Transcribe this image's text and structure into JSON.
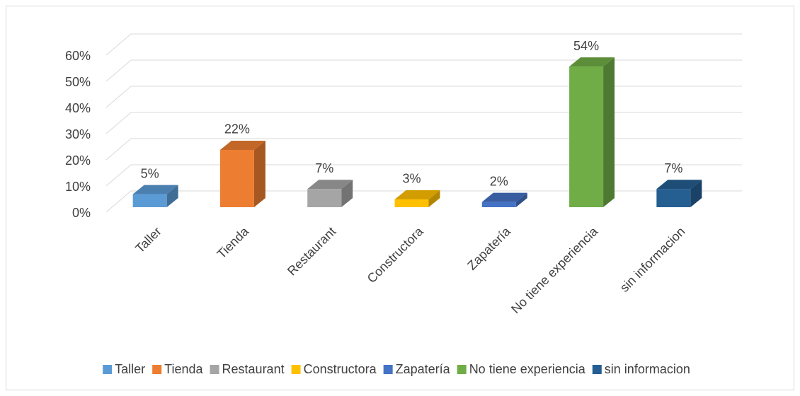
{
  "chart_data": {
    "type": "bar3d",
    "categories": [
      "Taller",
      "Tienda",
      "Restaurant",
      "Constructora",
      "Zapatería",
      "No tiene experiencia",
      "sin informacion"
    ],
    "values": [
      5,
      22,
      7,
      3,
      2,
      54,
      7
    ],
    "value_labels": [
      "5%",
      "22%",
      "7%",
      "3%",
      "2%",
      "54%",
      "7%"
    ],
    "colors": [
      "#5b9bd5",
      "#ed7d31",
      "#a5a5a5",
      "#ffc000",
      "#4472c4",
      "#70ad47",
      "#255e91"
    ],
    "ylim": [
      0,
      60
    ],
    "yticks": [
      {
        "value": 0,
        "label": "0%"
      },
      {
        "value": 10,
        "label": "10%"
      },
      {
        "value": 20,
        "label": "20%"
      },
      {
        "value": 30,
        "label": "30%"
      },
      {
        "value": 40,
        "label": "40%"
      },
      {
        "value": 50,
        "label": "50%"
      },
      {
        "value": 60,
        "label": "60%"
      }
    ],
    "grid": true,
    "legend": "bottom"
  }
}
